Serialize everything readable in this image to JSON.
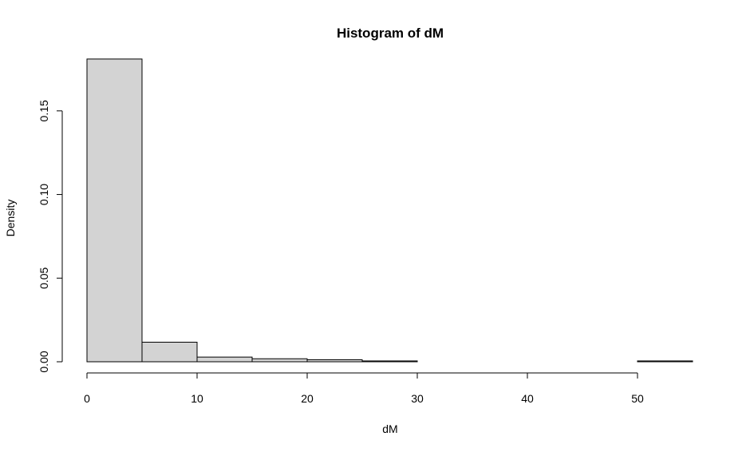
{
  "chart_data": {
    "type": "bar",
    "title": "Histogram of dM",
    "xlabel": "dM",
    "ylabel": "Density",
    "xlim": [
      0,
      55
    ],
    "ylim": [
      0,
      0.18
    ],
    "x_ticks": [
      0,
      10,
      20,
      30,
      40,
      50
    ],
    "y_ticks": [
      "0.00",
      "0.05",
      "0.10",
      "0.15"
    ],
    "grid": false,
    "bins": [
      {
        "start": 0,
        "end": 5,
        "density": 0.181
      },
      {
        "start": 5,
        "end": 10,
        "density": 0.0117
      },
      {
        "start": 10,
        "end": 15,
        "density": 0.0028
      },
      {
        "start": 15,
        "end": 20,
        "density": 0.0018
      },
      {
        "start": 20,
        "end": 25,
        "density": 0.0012
      },
      {
        "start": 25,
        "end": 30,
        "density": 0.0005
      },
      {
        "start": 30,
        "end": 35,
        "density": 0.0
      },
      {
        "start": 35,
        "end": 40,
        "density": 0.0
      },
      {
        "start": 40,
        "end": 45,
        "density": 0.0
      },
      {
        "start": 45,
        "end": 50,
        "density": 0.0
      },
      {
        "start": 50,
        "end": 55,
        "density": 0.0005
      }
    ]
  }
}
